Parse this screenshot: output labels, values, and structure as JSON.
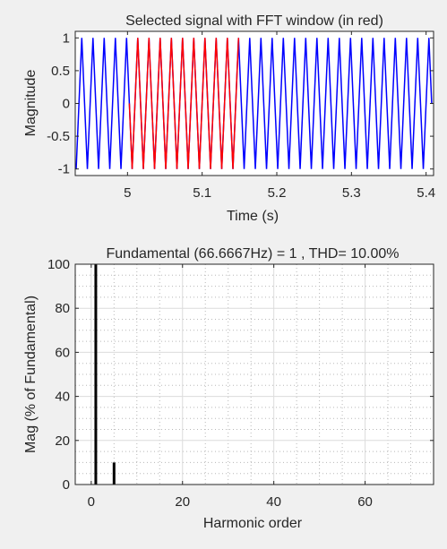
{
  "chart_data": [
    {
      "type": "line",
      "title": "Selected signal with FFT window (in red)",
      "xlabel": "Time (s)",
      "ylabel": "Magnitude",
      "xlim": [
        4.93,
        5.41
      ],
      "ylim": [
        -1.1,
        1.1
      ],
      "xticks": [
        5,
        5.1,
        5.2,
        5.3,
        5.4
      ],
      "xtick_labels": [
        "5",
        "5.1",
        "5.2",
        "5.3",
        "5.4"
      ],
      "yticks": [
        1,
        0.5,
        0,
        -0.5,
        -1
      ],
      "ytick_labels": [
        "1",
        "0.5",
        "0",
        "-0.5",
        "-1"
      ],
      "grid": false,
      "series": [
        {
          "role": "signal",
          "color": "#0000ff",
          "frequency_hz": 66.6667,
          "amplitude": 1,
          "x_range": [
            4.93,
            5.41
          ]
        },
        {
          "role": "fft-window",
          "color": "#ff0000",
          "frequency_hz": 66.6667,
          "amplitude": 1,
          "x_range": [
            5.0,
            5.15
          ]
        }
      ]
    },
    {
      "type": "bar",
      "title": "Fundamental (66.6667Hz) = 1 , THD= 10.00%",
      "xlabel": "Harmonic order",
      "ylabel": "Mag (% of Fundamental)",
      "xlim": [
        -3.5,
        75
      ],
      "ylim": [
        0,
        100
      ],
      "xticks": [
        0,
        20,
        40,
        60
      ],
      "xtick_labels": [
        "0",
        "20",
        "40",
        "60"
      ],
      "yticks": [
        0,
        20,
        40,
        60,
        80,
        100
      ],
      "ytick_labels": [
        "0",
        "20",
        "40",
        "60",
        "80",
        "100"
      ],
      "grid": true,
      "bar_color": "#000000",
      "x": [
        1,
        5
      ],
      "values": [
        100,
        10
      ]
    }
  ]
}
